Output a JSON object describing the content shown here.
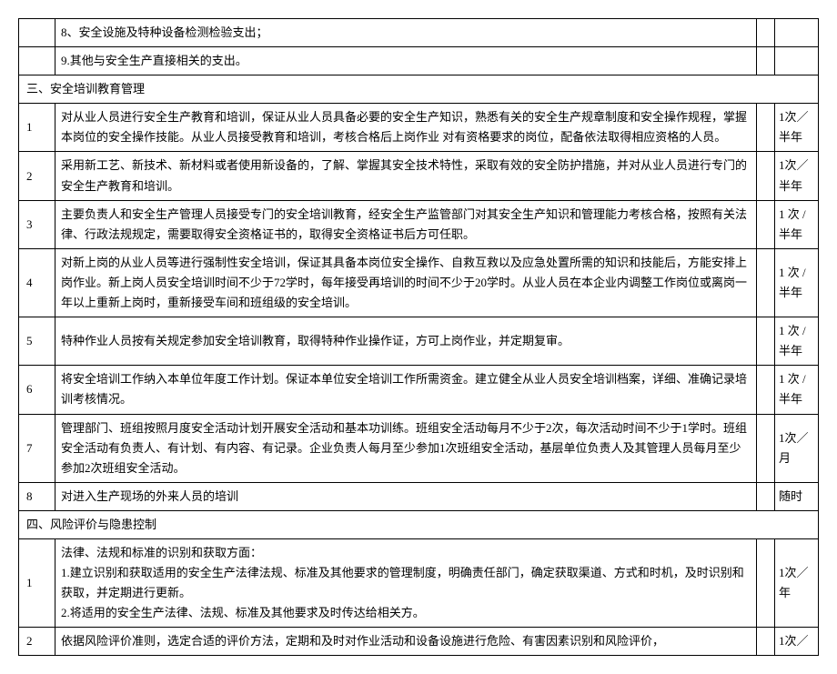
{
  "initial_rows": [
    {
      "num": "",
      "content": "8、安全设施及特种设备检测检验支出；",
      "freq": ""
    },
    {
      "num": "",
      "content": "9.其他与安全生产直接相关的支出。",
      "freq": ""
    }
  ],
  "section3": {
    "header": "三、安全培训教育管理",
    "rows": [
      {
        "num": "1",
        "content": "对从业人员进行安全生产教育和培训，保证从业人员具备必要的安全生产知识，熟悉有关的安全生产规章制度和安全操作规程，掌握本岗位的安全操作技能。从业人员接受教育和培训，考核合格后上岗作业 对有资格要求的岗位，配备依法取得相应资格的人员。",
        "freq": "1次／半年"
      },
      {
        "num": "2",
        "content": "采用新工艺、新技术、新材料或者使用新设备的，了解、掌握其安全技术特性，采取有效的安全防护措施，并对从业人员进行专门的安全生产教育和培训。",
        "freq": "1次／半年"
      },
      {
        "num": "3",
        "content": "主要负责人和安全生产管理人员接受专门的安全培训教育，经安全生产监管部门对其安全生产知识和管理能力考核合格，按照有关法律、行政法规规定，需要取得安全资格证书的，取得安全资格证书后方可任职。",
        "freq": "1 次 / 半年"
      },
      {
        "num": "4",
        "content": "对新上岗的从业人员等进行强制性安全培训，保证其具备本岗位安全操作、自救互救以及应急处置所需的知识和技能后，方能安排上岗作业。新上岗人员安全培训时间不少于72学时，每年接受再培训的时间不少于20学时。从业人员在本企业内调整工作岗位或离岗一年以上重新上岗时，重新接受车间和班组级的安全培训。",
        "freq": "1 次 / 半年"
      },
      {
        "num": "5",
        "content": "特种作业人员按有关规定参加安全培训教育，取得特种作业操作证，方可上岗作业，并定期复审。",
        "freq": "1 次 / 半年"
      },
      {
        "num": "6",
        "content": "将安全培训工作纳入本单位年度工作计划。保证本单位安全培训工作所需资金。建立健全从业人员安全培训档案，详细、准确记录培训考核情况。",
        "freq": "1 次 / 半年"
      },
      {
        "num": "7",
        "content": "管理部门、班组按照月度安全活动计划开展安全活动和基本功训练。班组安全活动每月不少于2次，每次活动时间不少于1学时。班组安全活动有负责人、有计划、有内容、有记录。企业负责人每月至少参加1次班组安全活动，基层单位负责人及其管理人员每月至少参加2次班组安全活动。",
        "freq": "1次／月"
      },
      {
        "num": "8",
        "content": "对进入生产现场的外来人员的培训",
        "freq": "随时"
      }
    ]
  },
  "section4": {
    "header": "四、风险评价与隐患控制",
    "rows": [
      {
        "num": "1",
        "content": "法律、法规和标准的识别和获取方面：\n1.建立识别和获取适用的安全生产法律法规、标准及其他要求的管理制度，明确责任部门，确定获取渠道、方式和时机，及时识别和获取，并定期进行更新。\n2.将适用的安全生产法律、法规、标准及其他要求及时传达给相关方。",
        "freq": "1次／年"
      },
      {
        "num": "2",
        "content": "依据风险评价准则，选定合适的评价方法，定期和及时对作业活动和设备设施进行危险、有害因素识别和风险评价，",
        "freq": "1次／"
      }
    ]
  },
  "style": {
    "font_size_pt": 10,
    "line_height": 1.7,
    "border_color": "#000000",
    "background_color": "#ffffff",
    "text_color": "#000000",
    "col_widths": {
      "num": 40,
      "gap": 20,
      "freq": 48
    }
  }
}
